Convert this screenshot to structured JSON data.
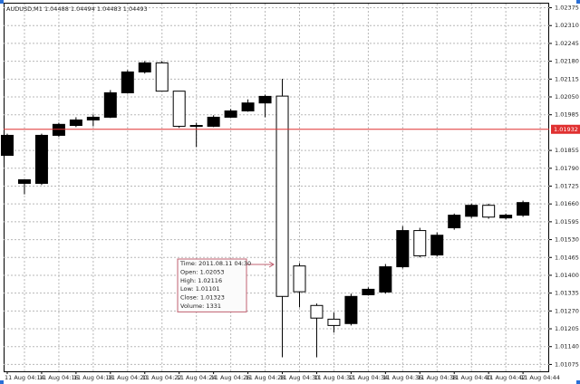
{
  "chart_data": {
    "type": "candlestick",
    "title": "AUDUSD,M1  1.04488 1.04494 1.04483 1.04493",
    "categories": [
      "11 Aug 04:14",
      null,
      "11 Aug 04:16",
      null,
      "11 Aug 04:18",
      null,
      "11 Aug 04:20",
      null,
      "11 Aug 04:22",
      null,
      "11 Aug 04:24",
      null,
      "11 Aug 04:26",
      null,
      "11 Aug 04:28",
      null,
      "11 Aug 04:30",
      null,
      "11 Aug 04:32",
      null,
      "11 Aug 04:34",
      null,
      "11 Aug 04:36",
      null,
      "11 Aug 04:38",
      null,
      "11 Aug 04:40",
      null,
      "11 Aug 04:42",
      null,
      "11 Aug 04:44"
    ],
    "open": [
      1.01837,
      1.01735,
      1.01735,
      1.0191,
      1.01946,
      1.01966,
      1.01976,
      1.02065,
      1.02141,
      1.02174,
      1.02071,
      1.01946,
      1.01943,
      1.01976,
      1.01999,
      1.02028,
      1.02053,
      1.01434,
      1.0129,
      1.0124,
      1.01224,
      1.01329,
      1.01339,
      1.01431,
      1.01563,
      1.01474,
      1.01573,
      1.01615,
      1.01655,
      1.01609,
      1.01619
    ],
    "high": [
      1.01916,
      1.01748,
      1.01916,
      1.01956,
      1.01976,
      1.01986,
      1.02075,
      1.02148,
      1.02181,
      1.02181,
      1.02071,
      1.01956,
      1.01983,
      1.02006,
      1.02041,
      1.02058,
      1.02116,
      1.01444,
      1.01297,
      1.01264,
      1.01333,
      1.01356,
      1.01441,
      1.01579,
      1.01573,
      1.01556,
      1.01625,
      1.01661,
      1.01661,
      1.01625,
      1.01672
    ],
    "low": [
      1.01837,
      1.01695,
      1.01729,
      1.01904,
      1.0194,
      1.01943,
      1.01973,
      1.02062,
      1.02135,
      1.02071,
      1.01937,
      1.01867,
      1.0194,
      1.01973,
      1.01996,
      1.01976,
      1.01101,
      1.01283,
      1.01101,
      1.01191,
      1.01217,
      1.01326,
      1.01333,
      1.01425,
      1.01465,
      1.01468,
      1.01566,
      1.01609,
      1.01606,
      1.01603,
      1.01613
    ],
    "close": [
      1.0191,
      1.01748,
      1.0191,
      1.0195,
      1.01966,
      1.01976,
      1.02065,
      1.02141,
      1.02174,
      1.02071,
      1.01943,
      1.01943,
      1.01976,
      1.01999,
      1.02028,
      1.02052,
      1.01323,
      1.0134,
      1.01244,
      1.01217,
      1.01323,
      1.01349,
      1.01431,
      1.01563,
      1.01471,
      1.01546,
      1.01619,
      1.01655,
      1.01612,
      1.01619,
      1.01665
    ],
    "up_color": "#000000",
    "down_color": "#ffffff",
    "ylim": [
      1.0105,
      1.0239
    ],
    "yticks": [
      1.02375,
      {
        "value": 1.0231,
        "label": "1.02310"
      },
      1.02245,
      {
        "value": 1.0218,
        "label": "1.02180"
      },
      1.02115,
      {
        "value": 1.0205,
        "label": "1.02050"
      },
      1.01985,
      1.01855,
      {
        "value": 1.0179,
        "label": "1.01790"
      },
      1.01725,
      {
        "value": 1.0166,
        "label": "1.01660"
      },
      1.01595,
      {
        "value": 1.0153,
        "label": "1.01530"
      },
      1.01465,
      {
        "value": 1.014,
        "label": "1.01400"
      },
      1.01335,
      {
        "value": 1.0127,
        "label": "1.01270"
      },
      1.01205,
      {
        "value": 1.0114,
        "label": "1.01140"
      },
      1.01075
    ],
    "grid": true,
    "price_line": {
      "value": 1.01932,
      "color": "#e03030"
    },
    "tooltip": {
      "index": 16,
      "lines": [
        "Time: 2011.08.11 04:30",
        "Open: 1.02053",
        "High: 1.02116",
        "Low: 1.01101",
        "Close: 1.01323",
        "Volume: 1331"
      ]
    }
  }
}
